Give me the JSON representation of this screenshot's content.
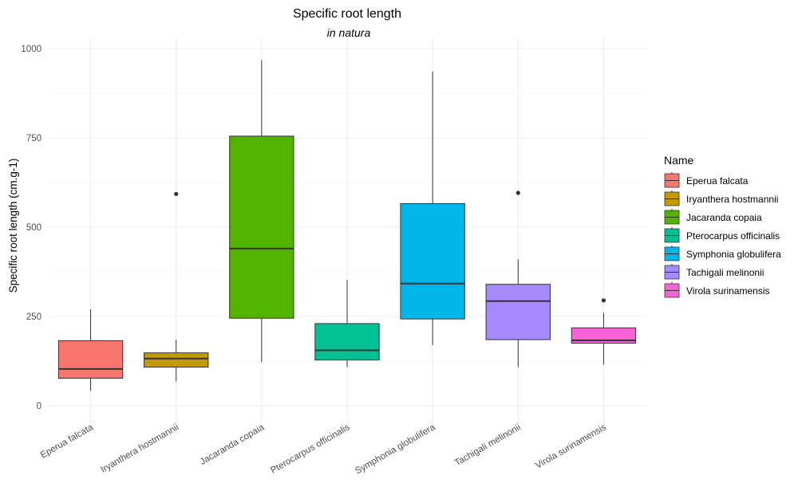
{
  "chart_data": {
    "type": "boxplot",
    "title": "Specific root length",
    "subtitle": "in natura",
    "xlabel": "",
    "ylabel": "Specific root length (cm.g-1)",
    "ylim": [
      0,
      1000
    ],
    "yticks": [
      0,
      250,
      500,
      750,
      1000
    ],
    "grid": true,
    "legend": {
      "title": "Name",
      "position": "right"
    },
    "categories": [
      "Eperua falcata",
      "Iryanthera hostmannii",
      "Jacaranda copaia",
      "Pterocarpus officinalis",
      "Symphonia globulifera",
      "Tachigali melinonii",
      "Virola surinamensis"
    ],
    "series": [
      {
        "name": "Eperua falcata",
        "color": "#F8766D",
        "whisker_low": 42,
        "q1": 77,
        "median": 103,
        "q3": 182,
        "whisker_high": 270,
        "outliers": []
      },
      {
        "name": "Iryanthera hostmannii",
        "color": "#C49A00",
        "whisker_low": 68,
        "q1": 108,
        "median": 132,
        "q3": 148,
        "whisker_high": 185,
        "outliers": [
          593
        ]
      },
      {
        "name": "Jacaranda copaia",
        "color": "#53B400",
        "whisker_low": 122,
        "q1": 245,
        "median": 440,
        "q3": 755,
        "whisker_high": 968,
        "outliers": []
      },
      {
        "name": "Pterocarpus officinalis",
        "color": "#00C094",
        "whisker_low": 108,
        "q1": 128,
        "median": 155,
        "q3": 230,
        "whisker_high": 352,
        "outliers": []
      },
      {
        "name": "Symphonia globulifera",
        "color": "#00B6EB",
        "whisker_low": 170,
        "q1": 243,
        "median": 342,
        "q3": 566,
        "whisker_high": 936,
        "outliers": []
      },
      {
        "name": "Tachigali melinonii",
        "color": "#A58AFF",
        "whisker_low": 108,
        "q1": 185,
        "median": 293,
        "q3": 340,
        "whisker_high": 410,
        "outliers": [
          596
        ]
      },
      {
        "name": "Virola surinamensis",
        "color": "#FB61D7",
        "whisker_low": 115,
        "q1": 175,
        "median": 183,
        "q3": 218,
        "whisker_high": 260,
        "outliers": [
          295
        ]
      }
    ]
  }
}
